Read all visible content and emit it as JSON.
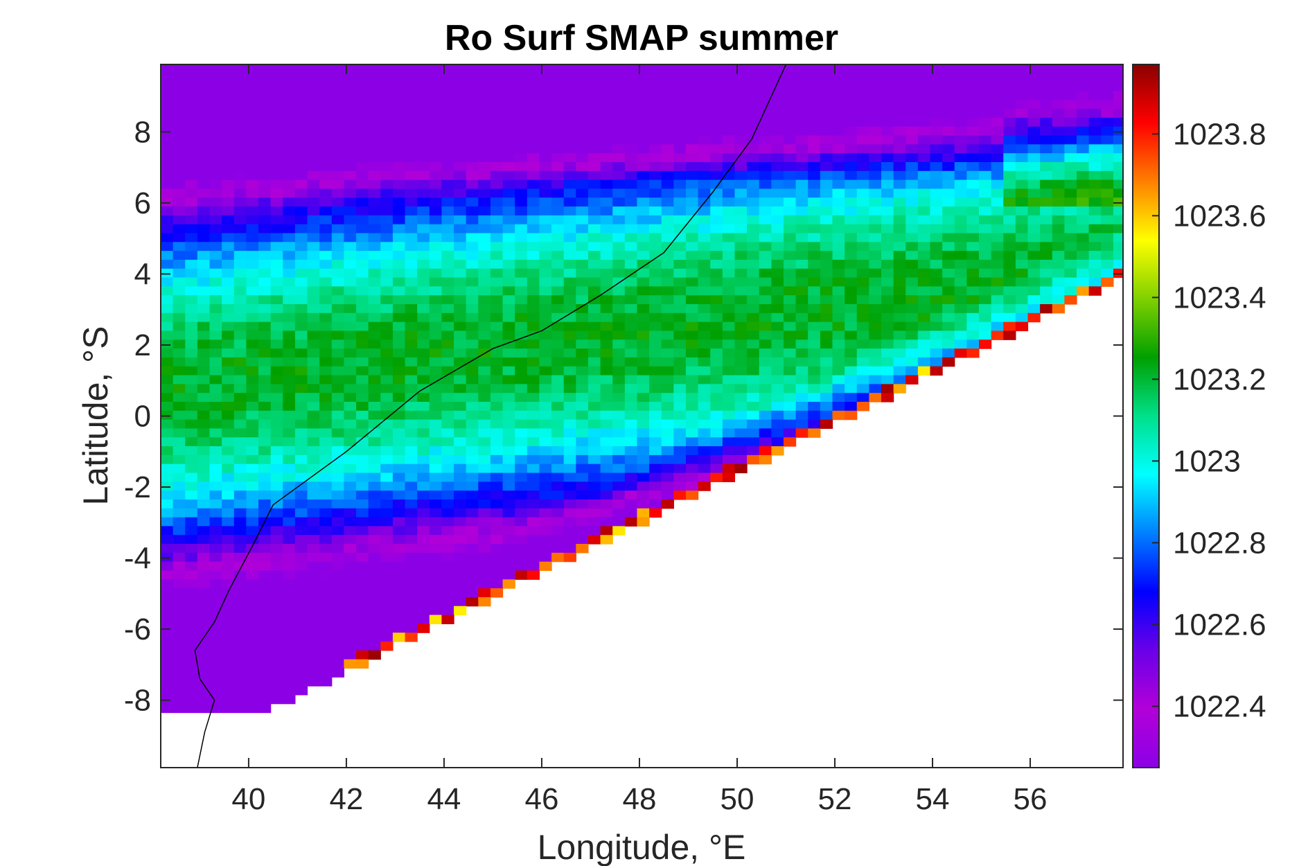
{
  "chart_data": {
    "type": "heatmap",
    "title": "Ro Surf SMAP summer",
    "xlabel": "Longitude, °E",
    "ylabel": "Latitude, °S",
    "xlim": [
      38.2,
      57.9
    ],
    "ylim": [
      -9.9,
      9.9
    ],
    "xticks": [
      40,
      42,
      44,
      46,
      48,
      50,
      52,
      54,
      56
    ],
    "xtick_labels": [
      "40",
      "42",
      "44",
      "46",
      "48",
      "50",
      "52",
      "54",
      "56"
    ],
    "yticks": [
      8,
      6,
      4,
      2,
      0,
      -2,
      -4,
      -6,
      -8
    ],
    "ytick_labels": [
      "8",
      "6",
      "4",
      "2",
      "0",
      "-2",
      "-4",
      "-6",
      "-8"
    ],
    "colorbar": {
      "clim": [
        1022.25,
        1023.97
      ],
      "ticks": [
        1023.8,
        1023.6,
        1023.4,
        1023.2,
        1023.0,
        1022.8,
        1022.6,
        1022.4
      ],
      "tick_labels": [
        "1023.8",
        "1023.6",
        "1023.4",
        "1023.2",
        "1023",
        "1022.8",
        "1022.6",
        "1022.4"
      ],
      "colormap": [
        "#8c00e6",
        "#b200d8",
        "#6a00e8",
        "#0000ff",
        "#0080ff",
        "#00ffff",
        "#00e08a",
        "#00a000",
        "#80d000",
        "#ffff00",
        "#ff8000",
        "#ff0000",
        "#8b0000"
      ]
    },
    "grid_resolution_deg": 0.25,
    "field_description": "Surface density field; low values (purple/blue) in the north and south margins, high values (green/yellow) in the central band, red band along the southeastern data edge",
    "coastline": true,
    "grid": false
  }
}
